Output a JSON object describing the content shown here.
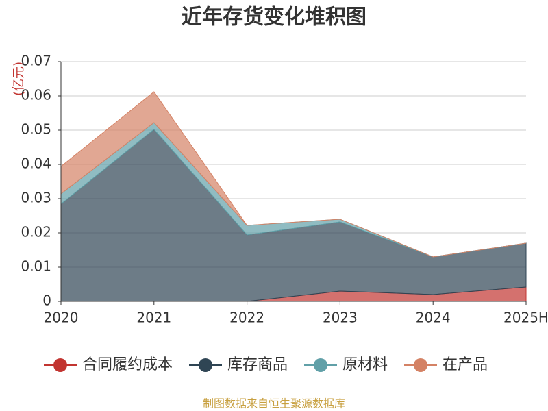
{
  "chart_data": {
    "type": "stacked-area",
    "title": "近年存货变化堆积图",
    "y_label": "(亿元)",
    "categories": [
      "2020",
      "2021",
      "2022",
      "2023",
      "2024",
      "2025H"
    ],
    "series": [
      {
        "name": "合同履约成本",
        "color": "#c23531",
        "values": [
          0,
          0,
          0,
          0.003,
          0.002,
          0.0042
        ]
      },
      {
        "name": "库存商品",
        "color": "#2f4554",
        "values": [
          0.0284,
          0.0502,
          0.0194,
          0.0202,
          0.011,
          0.0128
        ]
      },
      {
        "name": "原材料",
        "color": "#61a0a8",
        "values": [
          0.003,
          0.002,
          0.0028,
          0.0008,
          0,
          0
        ]
      },
      {
        "name": "在产品",
        "color": "#d48265",
        "values": [
          0.008,
          0.009,
          0,
          0,
          0,
          0
        ]
      }
    ],
    "ylim": [
      0,
      0.07
    ],
    "yticks": [
      0,
      0.01,
      0.02,
      0.03,
      0.04,
      0.05,
      0.06,
      0.07
    ],
    "grid": true,
    "legend": "bottom",
    "source": "制图数据来自恒生聚源数据库"
  }
}
